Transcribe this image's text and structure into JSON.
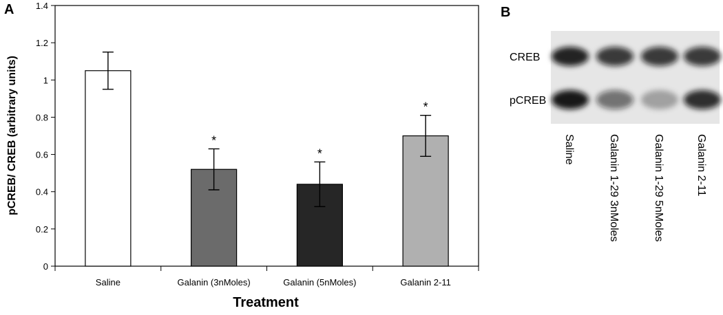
{
  "chart_data": {
    "type": "bar",
    "panel": "A",
    "categories": [
      "Saline",
      "Galanin (3nMoles)",
      "Galanin (5nMoles)",
      "Galanin 2-11"
    ],
    "values": [
      1.05,
      0.52,
      0.44,
      0.7
    ],
    "errors": [
      0.1,
      0.11,
      0.12,
      0.11
    ],
    "colors": [
      "#ffffff",
      "#6b6b6b",
      "#262626",
      "#b0b0b0"
    ],
    "annotations": [
      null,
      "*",
      "*",
      "*"
    ],
    "x_label": "Treatment",
    "y_label": "pCREB/ CREB (arbitrary units)",
    "ylim": [
      0,
      1.4
    ],
    "yticks": [
      0,
      0.2,
      0.4,
      0.6,
      0.8,
      1,
      1.2,
      1.4
    ]
  },
  "blot": {
    "panel": "B",
    "rows": [
      "CREB",
      "pCREB"
    ],
    "lanes": [
      "Saline",
      "Galanin 1-29 3nMoles",
      "Galanin 1-29 5nMoles",
      "Galanin 2-11"
    ]
  }
}
